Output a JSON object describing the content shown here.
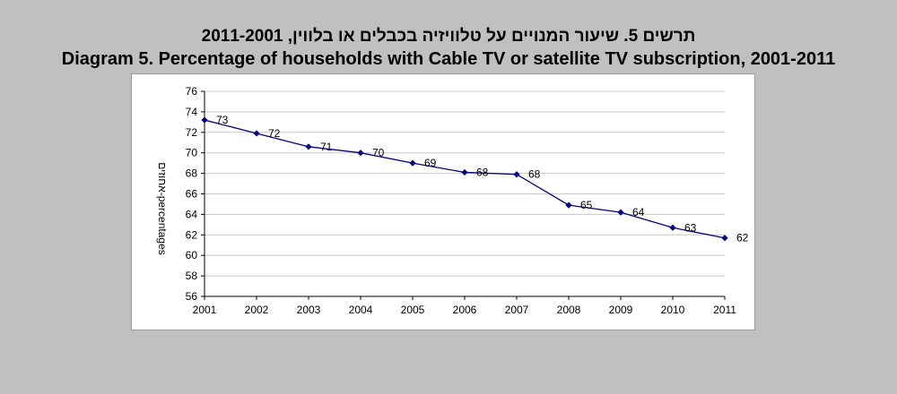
{
  "colors": {
    "background": "#c0c0c0",
    "plot_background": "#ffffff",
    "series_line": "#000080",
    "gridline": "#c8c8c8"
  },
  "chart_data": {
    "type": "line",
    "title_hebrew": "תרשים 5. שיעור המנויים על טלוויזיה בכבלים או בלווין, 2011-2001",
    "title": "Diagram 5. Percentage of households with Cable TV or satellite TV subscription, 2001-2011",
    "xlabel": "",
    "ylabel": "אחוזים-percentages",
    "ylim": [
      56,
      76
    ],
    "yticks": [
      "56",
      "58",
      "60",
      "62",
      "64",
      "66",
      "68",
      "70",
      "72",
      "74",
      "76"
    ],
    "grid": true,
    "categories": [
      "2001",
      "2002",
      "2003",
      "2004",
      "2005",
      "2006",
      "2007",
      "2008",
      "2009",
      "2010",
      "2011"
    ],
    "series": [
      {
        "name": "households with Cable TV or satellite TV",
        "values": [
          73.2,
          71.9,
          70.6,
          70.0,
          69.0,
          68.1,
          67.9,
          64.9,
          64.2,
          62.7,
          61.7
        ],
        "labels": [
          "73",
          "72",
          "71",
          "70",
          "69",
          "68",
          "68",
          "65",
          "64",
          "63",
          "62"
        ]
      }
    ]
  }
}
